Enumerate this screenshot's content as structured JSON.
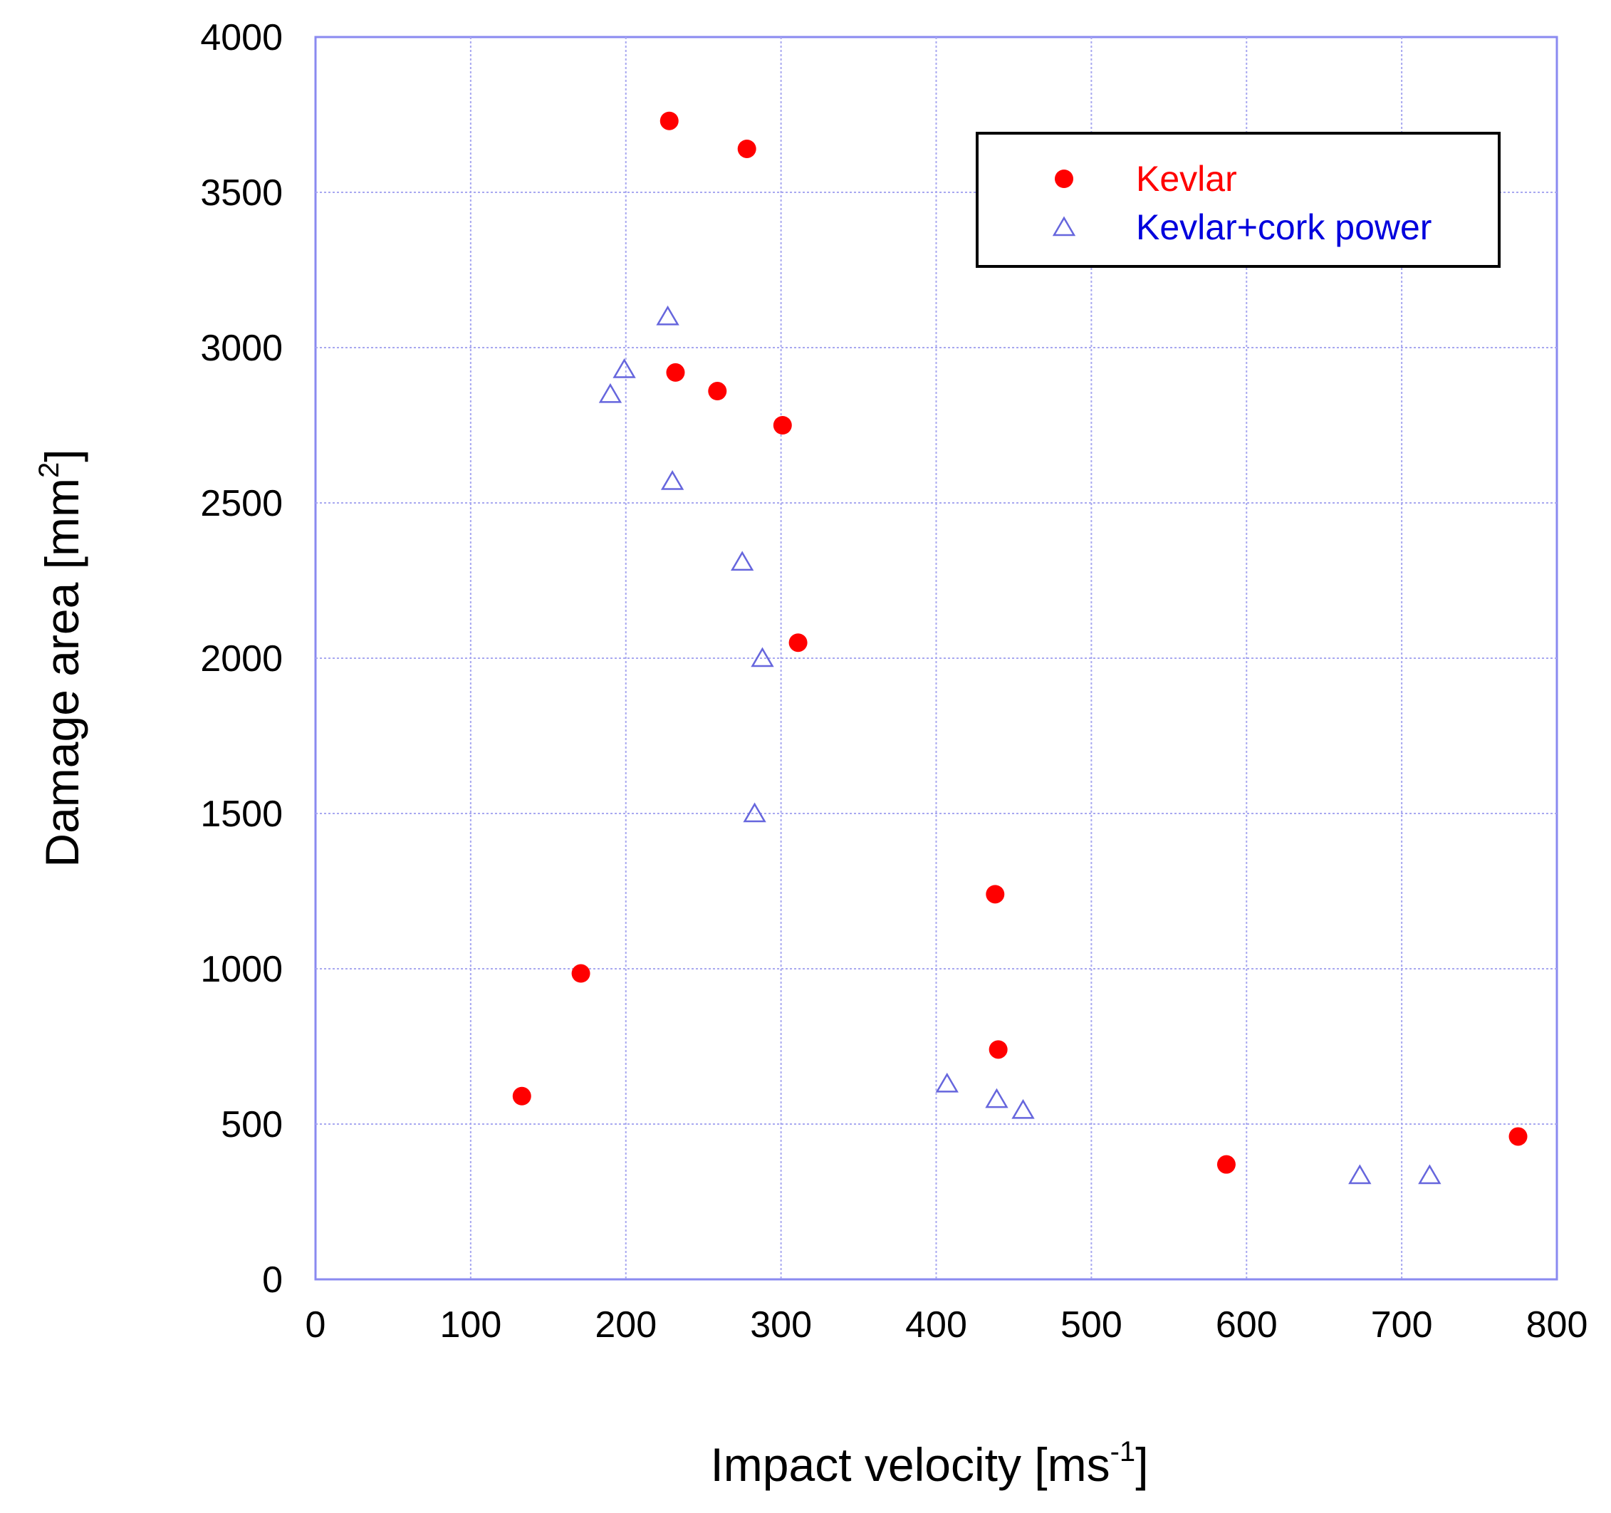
{
  "chart_data": {
    "type": "scatter",
    "title": "",
    "xlabel": "Impact velocity [ms",
    "xlabel_sup": "-1",
    "xlabel_end": "]",
    "ylabel": "Damage area [mm",
    "ylabel_sup": "2",
    "ylabel_end": "]",
    "xlim": [
      0,
      800
    ],
    "ylim": [
      0,
      4000
    ],
    "xticks": [
      0,
      100,
      200,
      300,
      400,
      500,
      600,
      700,
      800
    ],
    "yticks": [
      0,
      500,
      1000,
      1500,
      2000,
      2500,
      3000,
      3500,
      4000
    ],
    "grid": true,
    "legend_position": "top-right",
    "series": [
      {
        "name": "Kevlar",
        "marker": "filled-circle",
        "color": "#ff0000",
        "points": [
          {
            "x": 228,
            "y": 3730
          },
          {
            "x": 278,
            "y": 3640
          },
          {
            "x": 232,
            "y": 2920
          },
          {
            "x": 259,
            "y": 2860
          },
          {
            "x": 301,
            "y": 2750
          },
          {
            "x": 311,
            "y": 2050
          },
          {
            "x": 438,
            "y": 1240
          },
          {
            "x": 171,
            "y": 985
          },
          {
            "x": 440,
            "y": 740
          },
          {
            "x": 133,
            "y": 590
          },
          {
            "x": 587,
            "y": 370
          },
          {
            "x": 775,
            "y": 460
          }
        ]
      },
      {
        "name": "Kevlar+cork power",
        "marker": "open-triangle",
        "color": "#6666dd",
        "points": [
          {
            "x": 227,
            "y": 3100
          },
          {
            "x": 199,
            "y": 2930
          },
          {
            "x": 190,
            "y": 2850
          },
          {
            "x": 230,
            "y": 2570
          },
          {
            "x": 275,
            "y": 2310
          },
          {
            "x": 288,
            "y": 2000
          },
          {
            "x": 283,
            "y": 1500
          },
          {
            "x": 407,
            "y": 630
          },
          {
            "x": 439,
            "y": 580
          },
          {
            "x": 456,
            "y": 545
          },
          {
            "x": 673,
            "y": 335
          },
          {
            "x": 718,
            "y": 335
          }
        ]
      }
    ]
  }
}
